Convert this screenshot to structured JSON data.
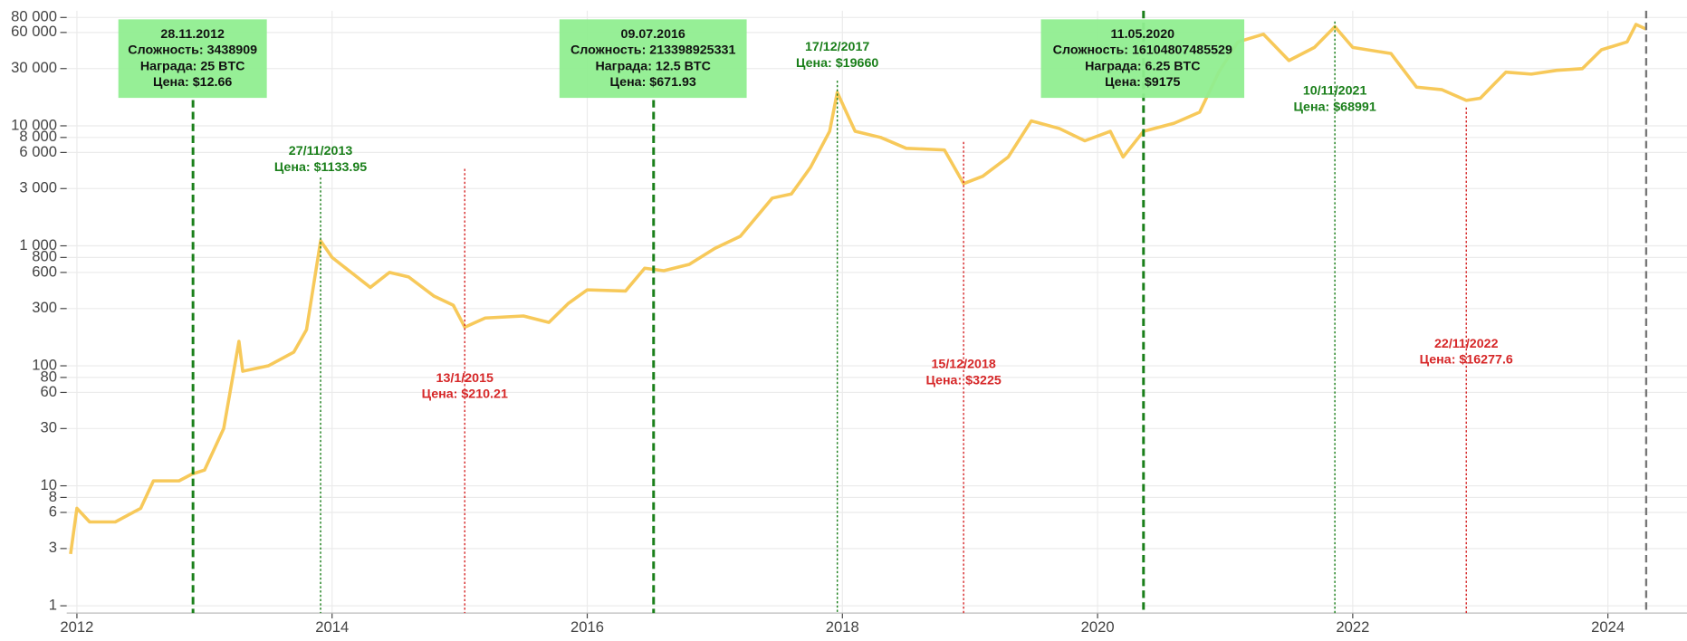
{
  "chart_data": {
    "type": "line",
    "log_y": true,
    "grid": true,
    "xlim": [
      2011.92,
      2024.62
    ],
    "xticks": [
      2012,
      2014,
      2016,
      2018,
      2020,
      2022,
      2024
    ],
    "ylim": [
      0.87,
      91000
    ],
    "yticks": [
      1,
      3,
      6,
      8,
      10,
      30,
      60,
      80,
      100,
      300,
      600,
      800,
      {
        "value": 1000,
        "label": "1 000"
      },
      {
        "value": 3000,
        "label": "3 000"
      },
      {
        "value": 6000,
        "label": "6 000"
      },
      {
        "value": 8000,
        "label": "8 000"
      },
      {
        "value": 10000,
        "label": "10 000"
      },
      {
        "value": 30000,
        "label": "30 000"
      },
      {
        "value": 60000,
        "label": "60 000"
      },
      {
        "value": 80000,
        "label": "80 000"
      }
    ],
    "series": [
      {
        "color": "#f7c95a",
        "x": [
          2011.95,
          2012.0,
          2012.1,
          2012.3,
          2012.5,
          2012.6,
          2012.8,
          2012.9,
          2013.0,
          2013.15,
          2013.27,
          2013.3,
          2013.5,
          2013.7,
          2013.8,
          2013.91,
          2014.0,
          2014.15,
          2014.3,
          2014.45,
          2014.6,
          2014.8,
          2014.95,
          2015.04,
          2015.2,
          2015.5,
          2015.7,
          2015.85,
          2016.0,
          2016.3,
          2016.45,
          2016.6,
          2016.8,
          2017.0,
          2017.2,
          2017.45,
          2017.6,
          2017.75,
          2017.9,
          2017.96,
          2018.1,
          2018.3,
          2018.5,
          2018.8,
          2018.95,
          2019.1,
          2019.3,
          2019.48,
          2019.7,
          2019.9,
          2020.1,
          2020.2,
          2020.36,
          2020.6,
          2020.8,
          2020.95,
          2021.1,
          2021.3,
          2021.5,
          2021.7,
          2021.86,
          2022.0,
          2022.3,
          2022.5,
          2022.7,
          2022.89,
          2023.0,
          2023.2,
          2023.4,
          2023.6,
          2023.8,
          2023.95,
          2024.15,
          2024.22,
          2024.3
        ],
        "values": [
          2.7,
          6.5,
          5,
          5,
          6.5,
          11,
          11,
          12.5,
          13.5,
          30,
          160,
          90,
          100,
          130,
          200,
          1100,
          800,
          600,
          450,
          600,
          550,
          380,
          320,
          210,
          250,
          260,
          230,
          330,
          430,
          420,
          650,
          620,
          700,
          950,
          1200,
          2500,
          2700,
          4500,
          9000,
          19000,
          9000,
          8000,
          6500,
          6300,
          3300,
          3800,
          5500,
          11000,
          9500,
          7500,
          9000,
          5500,
          9000,
          10500,
          13000,
          28000,
          50000,
          58000,
          35000,
          45000,
          67000,
          45000,
          40000,
          21000,
          20000,
          16300,
          17000,
          28000,
          27000,
          29000,
          30000,
          43000,
          50000,
          70000,
          64000
        ]
      }
    ],
    "halvings": {
      "color": "#1a7f1a",
      "box_color": "#90ee90",
      "items": [
        {
          "x": 2012.91,
          "lines": [
            "28.11.2012",
            "Сложность: 3438909",
            "Награда: 25 BTC",
            "Цена: $12.66"
          ]
        },
        {
          "x": 2016.52,
          "lines": [
            "09.07.2016",
            "Сложность: 213398925331",
            "Награда: 12.5 BTC",
            "Цена: $671.93"
          ]
        },
        {
          "x": 2020.36,
          "lines": [
            "11.05.2020",
            "Сложность: 16104807485529",
            "Награда: 6.25 BTC",
            "Цена: $9175"
          ]
        }
      ]
    },
    "extremes": [
      {
        "x": 2013.91,
        "color": "#1a7f1a",
        "lines": [
          "27/11/2013",
          "Цена: $1133.95"
        ]
      },
      {
        "x": 2015.04,
        "color": "#d62728",
        "lines": [
          "13/1/2015",
          "Цена: $210.21"
        ]
      },
      {
        "x": 2017.96,
        "color": "#1a7f1a",
        "lines": [
          "17/12/2017",
          "Цена: $19660"
        ]
      },
      {
        "x": 2018.95,
        "color": "#d62728",
        "lines": [
          "15/12/2018",
          "Цена: $3225"
        ]
      },
      {
        "x": 2021.86,
        "color": "#1a7f1a",
        "lines": [
          "10/11/2021",
          "Цена: $68991"
        ]
      },
      {
        "x": 2022.89,
        "color": "#d62728",
        "lines": [
          "22/11/2022",
          "Цена: $16277.6"
        ]
      }
    ],
    "marker": {
      "x": 2024.3,
      "color": "#777777"
    }
  }
}
